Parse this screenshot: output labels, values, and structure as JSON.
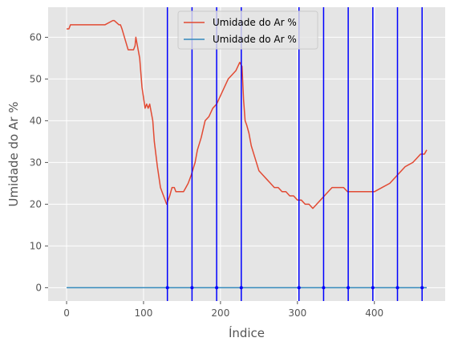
{
  "chart_data": {
    "type": "line",
    "xlabel": "Índice",
    "ylabel": "Umidade do Ar %",
    "xlim": [
      -24,
      492
    ],
    "ylim": [
      -3.2,
      67.2
    ],
    "xticks": [
      0,
      100,
      200,
      300,
      400
    ],
    "yticks": [
      0,
      10,
      20,
      30,
      40,
      50,
      60
    ],
    "grid": true,
    "legend_position": "top-center",
    "colors": {
      "plot_background": "#e5e5e5",
      "grid": "#ffffff",
      "series_humidity": "#e24a33",
      "series_flat": "#348abd",
      "vlines": "#0000ff"
    },
    "series": [
      {
        "name": "Umidade do Ar %",
        "color": "#e24a33",
        "x": [
          0,
          3,
          5,
          49,
          50,
          60,
          62,
          68,
          70,
          72,
          80,
          82,
          85,
          87,
          89,
          90,
          92,
          95,
          98,
          102,
          104,
          106,
          108,
          110,
          112,
          114,
          118,
          122,
          126,
          130,
          134,
          137,
          140,
          142,
          145,
          148,
          150,
          152,
          155,
          158,
          162,
          167,
          170,
          175,
          180,
          185,
          190,
          195,
          200,
          205,
          210,
          215,
          220,
          225,
          228,
          230,
          232,
          234,
          237,
          240,
          245,
          250,
          255,
          260,
          265,
          270,
          275,
          280,
          285,
          290,
          295,
          300,
          305,
          310,
          315,
          320,
          325,
          330,
          335,
          340,
          345,
          350,
          355,
          360,
          365,
          370,
          375,
          380,
          385,
          390,
          395,
          400,
          410,
          420,
          430,
          440,
          450,
          455,
          460,
          465,
          468
        ],
        "y": [
          62,
          62,
          63,
          63,
          63,
          64,
          64,
          63,
          63,
          62,
          57,
          57,
          57,
          57,
          58,
          60,
          58,
          55,
          48,
          43,
          44,
          43,
          44,
          42,
          40,
          35,
          29,
          24,
          22,
          20,
          22,
          24,
          24,
          23,
          23,
          23,
          23,
          23,
          24,
          25,
          27,
          30,
          33,
          36,
          40,
          41,
          43,
          44,
          46,
          48,
          50,
          51,
          52,
          54,
          53,
          45,
          40,
          39,
          37,
          34,
          31,
          28,
          27,
          26,
          25,
          24,
          24,
          23,
          23,
          22,
          22,
          21,
          21,
          20,
          20,
          19,
          20,
          21,
          22,
          23,
          24,
          24,
          24,
          24,
          23,
          23,
          23,
          23,
          23,
          23,
          23,
          23,
          24,
          25,
          27,
          29,
          30,
          31,
          32,
          32,
          33
        ]
      },
      {
        "name": "Umidade do Ar %",
        "color": "#348abd",
        "x": [
          0,
          468
        ],
        "y": [
          0,
          0
        ],
        "markers_x": [
          131,
          163,
          195,
          227,
          302,
          334,
          366,
          398,
          430,
          462
        ],
        "markers_y": 0
      }
    ],
    "vertical_lines_x": [
      131,
      163,
      195,
      227,
      302,
      334,
      366,
      398,
      430,
      462
    ]
  }
}
